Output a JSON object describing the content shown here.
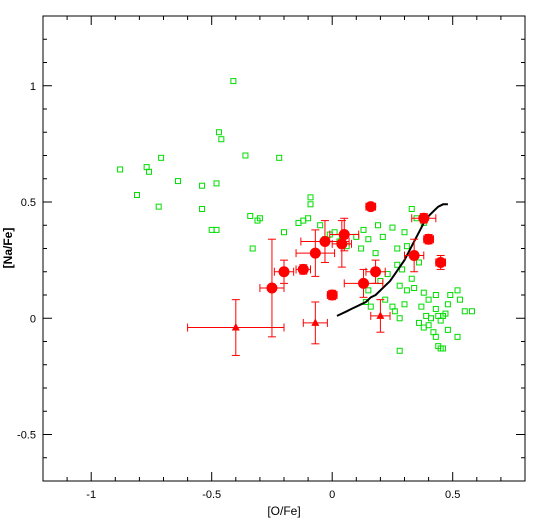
{
  "chart_data": {
    "type": "scatter",
    "title": "",
    "xlabel": "[O/Fe]",
    "ylabel": "[Na/Fe]",
    "xlim": [
      -1.2,
      0.8
    ],
    "ylim": [
      -0.7,
      1.3
    ],
    "xticks": [
      -1,
      -0.5,
      0,
      0.5
    ],
    "xtick_labels": [
      "-1",
      "-0.5",
      "0",
      "0.5"
    ],
    "yticks": [
      -0.5,
      0,
      0.5,
      1
    ],
    "ytick_labels": [
      "-0.5",
      "0",
      "0.5",
      "1"
    ],
    "grid": false,
    "colors": {
      "open_squares": "#00dd00",
      "red_points": "#ff0000",
      "curve": "#000000"
    },
    "series": [
      {
        "marker": "open-square",
        "color": "#00dd00",
        "points": [
          [
            -0.41,
            1.02
          ],
          [
            -0.47,
            0.8
          ],
          [
            -0.46,
            0.77
          ],
          [
            -0.88,
            0.64
          ],
          [
            -0.77,
            0.65
          ],
          [
            -0.76,
            0.63
          ],
          [
            -0.71,
            0.69
          ],
          [
            -0.64,
            0.59
          ],
          [
            -0.54,
            0.57
          ],
          [
            -0.48,
            0.58
          ],
          [
            -0.36,
            0.7
          ],
          [
            -0.22,
            0.69
          ],
          [
            -0.81,
            0.53
          ],
          [
            -0.72,
            0.48
          ],
          [
            -0.54,
            0.47
          ],
          [
            -0.34,
            0.44
          ],
          [
            -0.31,
            0.42
          ],
          [
            -0.3,
            0.43
          ],
          [
            -0.5,
            0.38
          ],
          [
            -0.48,
            0.38
          ],
          [
            -0.33,
            0.3
          ],
          [
            -0.2,
            0.37
          ],
          [
            -0.14,
            0.41
          ],
          [
            -0.12,
            0.42
          ],
          [
            -0.1,
            0.43
          ],
          [
            -0.09,
            0.52
          ],
          [
            -0.09,
            0.49
          ],
          [
            -0.05,
            0.4
          ],
          [
            -0.03,
            0.34
          ],
          [
            -0.01,
            0.36
          ],
          [
            0.01,
            0.37
          ],
          [
            0.04,
            0.34
          ],
          [
            0.06,
            0.31
          ],
          [
            0.1,
            0.35
          ],
          [
            0.13,
            0.38
          ],
          [
            0.15,
            0.34
          ],
          [
            0.19,
            0.4
          ],
          [
            0.21,
            0.35
          ],
          [
            0.25,
            0.39
          ],
          [
            0.27,
            0.3
          ],
          [
            0.3,
            0.37
          ],
          [
            0.33,
            0.47
          ],
          [
            0.35,
            0.43
          ],
          [
            0.38,
            0.41
          ],
          [
            0.31,
            0.31
          ],
          [
            0.36,
            0.24
          ],
          [
            0.27,
            0.23
          ],
          [
            0.29,
            0.21
          ],
          [
            0.23,
            0.19
          ],
          [
            0.2,
            0.16
          ],
          [
            0.15,
            0.12
          ],
          [
            0.14,
            0.07
          ],
          [
            0.16,
            0.05
          ],
          [
            0.22,
            0.08
          ],
          [
            0.25,
            0.05
          ],
          [
            0.26,
            0.03
          ],
          [
            0.28,
            0.0
          ],
          [
            0.3,
            0.06
          ],
          [
            0.31,
            0.12
          ],
          [
            0.34,
            0.13
          ],
          [
            0.38,
            0.11
          ],
          [
            0.4,
            0.08
          ],
          [
            0.43,
            0.1
          ],
          [
            0.37,
            0.05
          ],
          [
            0.39,
            0.01
          ],
          [
            0.41,
            0.0
          ],
          [
            0.43,
            0.04
          ],
          [
            0.44,
            0.01
          ],
          [
            0.45,
            -0.01
          ],
          [
            0.46,
            0.01
          ],
          [
            0.47,
            0.02
          ],
          [
            0.48,
            0.06
          ],
          [
            0.49,
            0.1
          ],
          [
            0.52,
            0.12
          ],
          [
            0.53,
            0.08
          ],
          [
            0.55,
            0.03
          ],
          [
            0.58,
            0.03
          ],
          [
            0.36,
            -0.02
          ],
          [
            0.38,
            -0.04
          ],
          [
            0.4,
            -0.03
          ],
          [
            0.42,
            -0.06
          ],
          [
            0.43,
            -0.08
          ],
          [
            0.44,
            -0.12
          ],
          [
            0.45,
            -0.13
          ],
          [
            0.46,
            -0.13
          ],
          [
            0.48,
            -0.05
          ],
          [
            0.52,
            -0.08
          ],
          [
            0.28,
            -0.14
          ],
          [
            0.33,
            0.17
          ],
          [
            0.28,
            0.14
          ],
          [
            0.18,
            0.28
          ],
          [
            0.12,
            0.3
          ],
          [
            0.03,
            0.33
          ]
        ]
      },
      {
        "marker": "filled-circle",
        "color": "#ff0000",
        "points": [
          [
            -0.25,
            0.13,
            0.05,
            0.21
          ],
          [
            -0.2,
            0.2,
            0.04,
            0.05
          ],
          [
            -0.12,
            0.21,
            0.03,
            0.02
          ],
          [
            -0.07,
            0.28,
            0.08,
            0.1
          ],
          [
            -0.03,
            0.33,
            0.1,
            0.09
          ],
          [
            0.04,
            0.32,
            0.04,
            0.1
          ],
          [
            0.05,
            0.36,
            0.06,
            0.07
          ],
          [
            0.0,
            0.1,
            0.02,
            0.02
          ],
          [
            0.16,
            0.48,
            0.02,
            0.01
          ],
          [
            0.13,
            0.15,
            0.08,
            0.06
          ],
          [
            0.18,
            0.2,
            0.04,
            0.05
          ],
          [
            0.34,
            0.27,
            0.04,
            0.07
          ],
          [
            0.38,
            0.43,
            0.05,
            0.02
          ],
          [
            0.4,
            0.34,
            0.02,
            0.02
          ],
          [
            0.45,
            0.24,
            0.02,
            0.03
          ]
        ]
      },
      {
        "marker": "filled-triangle",
        "color": "#ff0000",
        "points": [
          [
            -0.4,
            -0.04,
            0.2,
            0.12
          ],
          [
            -0.07,
            -0.02,
            0.05,
            0.09
          ],
          [
            0.2,
            0.01,
            0.04,
            0.07
          ]
        ]
      },
      {
        "marker": "line",
        "color": "#000000",
        "points": [
          [
            0.02,
            0.01
          ],
          [
            0.04,
            0.02
          ],
          [
            0.06,
            0.03
          ],
          [
            0.08,
            0.04
          ],
          [
            0.1,
            0.05
          ],
          [
            0.12,
            0.06
          ],
          [
            0.14,
            0.07
          ],
          [
            0.16,
            0.09
          ],
          [
            0.18,
            0.1
          ],
          [
            0.2,
            0.12
          ],
          [
            0.22,
            0.14
          ],
          [
            0.24,
            0.16
          ],
          [
            0.26,
            0.19
          ],
          [
            0.28,
            0.22
          ],
          [
            0.3,
            0.25
          ],
          [
            0.32,
            0.29
          ],
          [
            0.34,
            0.33
          ],
          [
            0.36,
            0.37
          ],
          [
            0.38,
            0.41
          ],
          [
            0.4,
            0.44
          ],
          [
            0.42,
            0.46
          ],
          [
            0.44,
            0.48
          ],
          [
            0.46,
            0.49
          ],
          [
            0.48,
            0.49
          ]
        ]
      }
    ]
  }
}
